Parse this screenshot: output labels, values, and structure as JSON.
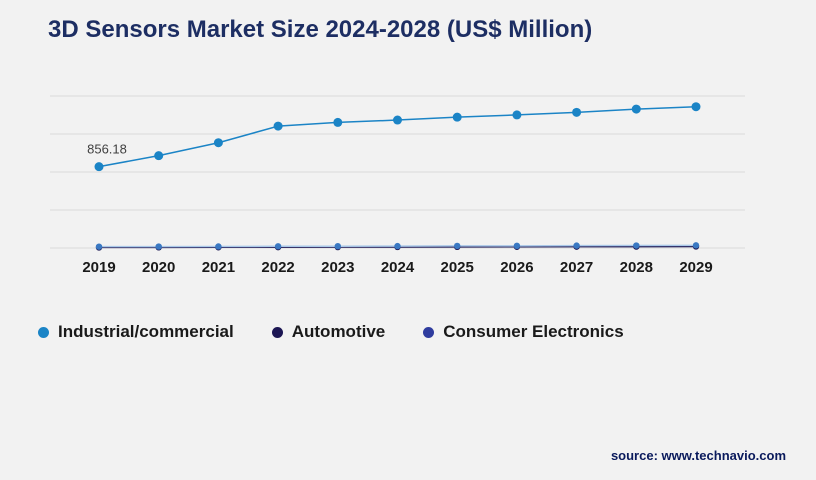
{
  "title": "3D Sensors Market Size 2024-2028 (US$ Million)",
  "source": "source: www.technavio.com",
  "legend": [
    {
      "label": "Industrial/commercial",
      "color": "#1b84c6"
    },
    {
      "label": "Automotive",
      "color": "#1c1653"
    },
    {
      "label": "Consumer Electronics",
      "color": "#2f3c9e"
    }
  ],
  "chart_data": {
    "type": "line",
    "title": "3D Sensors Market Size 2024-2028 (US$ Million)",
    "categories": [
      "2019",
      "2020",
      "2021",
      "2022",
      "2023",
      "2024",
      "2025",
      "2026",
      "2027",
      "2028",
      "2029"
    ],
    "series": [
      {
        "name": "Industrial/commercial",
        "color": "#1b84c6",
        "values": [
          856.18,
          972,
          1108,
          1283,
          1322,
          1347,
          1377,
          1401,
          1428,
          1462,
          1487
        ]
      },
      {
        "name": "Automotive",
        "color": "#1c1653",
        "values": [
          6,
          7,
          8,
          9,
          10,
          11,
          12,
          13,
          14,
          15,
          16
        ]
      },
      {
        "name": "Consumer Electronics",
        "color": "#3a78c2",
        "line_color": "#aac8e8",
        "values": [
          14,
          15,
          16,
          18,
          19,
          20,
          22,
          23,
          25,
          26,
          28
        ]
      }
    ],
    "ylim": [
      0,
      1600
    ],
    "gridlines": [
      0,
      400,
      800,
      1200,
      1600
    ],
    "grid": true,
    "legend_position": "bottom",
    "xlabel": "",
    "ylabel": "",
    "annotation": {
      "series": 0,
      "index": 0,
      "text": "856.18"
    }
  }
}
